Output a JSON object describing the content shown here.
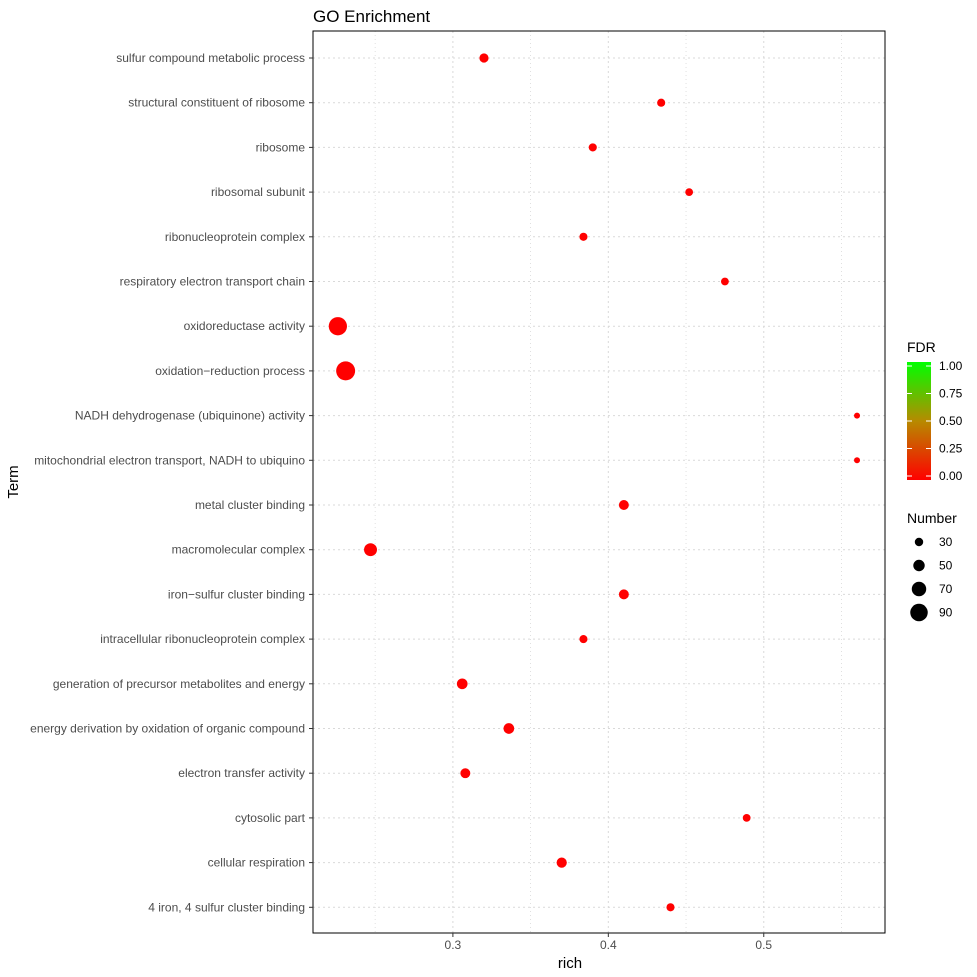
{
  "chart_data": {
    "type": "scatter",
    "title": "GO Enrichment",
    "xlabel": "rich",
    "ylabel": "Term",
    "xlim": [
      0.21,
      0.578
    ],
    "xticks": [
      0.3,
      0.4,
      0.5
    ],
    "xtick_labels": [
      "0.3",
      "0.4",
      "0.5"
    ],
    "grid": true,
    "legend_position": "right",
    "categories": [
      "sulfur compound metabolic process",
      "structural constituent of ribosome",
      "ribosome",
      "ribosomal subunit",
      "ribonucleoprotein complex",
      "respiratory electron transport chain",
      "oxidoreductase activity",
      "oxidation−reduction process",
      "NADH dehydrogenase (ubiquinone) activity",
      "mitochondrial electron transport, NADH to ubiquino",
      "metal cluster binding",
      "macromolecular complex",
      "iron−sulfur cluster binding",
      "intracellular ribonucleoprotein complex",
      "generation of precursor metabolites and energy",
      "energy derivation by oxidation of organic compound",
      "electron transfer activity",
      "cytosolic part",
      "cellular respiration",
      "4 iron, 4 sulfur cluster binding"
    ],
    "points": [
      {
        "term": "sulfur compound metabolic process",
        "rich": 0.32,
        "number": 35,
        "fdr": 0.0
      },
      {
        "term": "structural constituent of ribosome",
        "rich": 0.434,
        "number": 28,
        "fdr": 0.0
      },
      {
        "term": "ribosome",
        "rich": 0.39,
        "number": 28,
        "fdr": 0.0
      },
      {
        "term": "ribosomal subunit",
        "rich": 0.452,
        "number": 26,
        "fdr": 0.0
      },
      {
        "term": "ribonucleoprotein complex",
        "rich": 0.384,
        "number": 28,
        "fdr": 0.0
      },
      {
        "term": "respiratory electron transport chain",
        "rich": 0.475,
        "number": 26,
        "fdr": 0.0
      },
      {
        "term": "oxidoreductase activity",
        "rich": 0.226,
        "number": 95,
        "fdr": 0.0
      },
      {
        "term": "oxidation−reduction process",
        "rich": 0.231,
        "number": 100,
        "fdr": 0.0
      },
      {
        "term": "NADH dehydrogenase (ubiquinone) activity",
        "rich": 0.56,
        "number": 14,
        "fdr": 0.0
      },
      {
        "term": "mitochondrial electron transport, NADH to ubiquino",
        "rich": 0.56,
        "number": 14,
        "fdr": 0.0
      },
      {
        "term": "metal cluster binding",
        "rich": 0.41,
        "number": 40,
        "fdr": 0.0
      },
      {
        "term": "macromolecular complex",
        "rich": 0.247,
        "number": 60,
        "fdr": 0.0
      },
      {
        "term": "iron−sulfur cluster binding",
        "rich": 0.41,
        "number": 40,
        "fdr": 0.0
      },
      {
        "term": "intracellular ribonucleoprotein complex",
        "rich": 0.384,
        "number": 28,
        "fdr": 0.0
      },
      {
        "term": "generation of precursor metabolites and energy",
        "rich": 0.306,
        "number": 45,
        "fdr": 0.0
      },
      {
        "term": "energy derivation by oxidation of organic compound",
        "rich": 0.336,
        "number": 45,
        "fdr": 0.0
      },
      {
        "term": "electron transfer activity",
        "rich": 0.308,
        "number": 40,
        "fdr": 0.0
      },
      {
        "term": "cytosolic part",
        "rich": 0.489,
        "number": 26,
        "fdr": 0.0
      },
      {
        "term": "cellular respiration",
        "rich": 0.37,
        "number": 42,
        "fdr": 0.0
      },
      {
        "term": "4 iron, 4 sulfur cluster binding",
        "rich": 0.44,
        "number": 28,
        "fdr": 0.0
      }
    ],
    "legend": {
      "color": {
        "title": "FDR",
        "range": [
          0,
          1
        ],
        "ticks": [
          "1.00",
          "0.75",
          "0.50",
          "0.25",
          "0.00"
        ],
        "low_color": "#ff0000",
        "high_color": "#00ff00"
      },
      "size": {
        "title": "Number",
        "values": [
          30,
          50,
          70,
          90
        ],
        "labels": [
          "30",
          "50",
          "70",
          "90"
        ]
      }
    },
    "colors": {
      "point_color": "#ff0000",
      "grid_color": "#d9d9d9",
      "panel_border": "#000000"
    }
  }
}
